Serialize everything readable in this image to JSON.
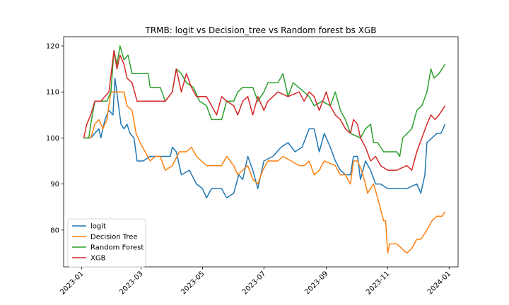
{
  "chart_data": {
    "type": "line",
    "title": "TRMB: logit vs Decision_tree vs Random forest bs XGB",
    "xlabel": "",
    "ylabel": "",
    "ylim": [
      72,
      122
    ],
    "xlim": [
      "2022-12-14",
      "2024-01-10"
    ],
    "yticks": [
      80,
      90,
      100,
      110,
      120
    ],
    "xticks": [
      "2023-01",
      "2023-03",
      "2023-05",
      "2023-07",
      "2023-09",
      "2023-11",
      "2024-01"
    ],
    "xtick_dates": [
      "2023-01-01",
      "2023-03-01",
      "2023-05-01",
      "2023-07-01",
      "2023-09-01",
      "2023-11-01",
      "2024-01-01"
    ],
    "grid": false,
    "legend_position": "lower-left",
    "series": [
      {
        "name": "logit",
        "color": "#1f77b4",
        "points": [
          [
            "2023-01-03",
            100
          ],
          [
            "2023-01-10",
            100
          ],
          [
            "2023-01-14",
            101
          ],
          [
            "2023-01-18",
            102
          ],
          [
            "2023-01-20",
            100
          ],
          [
            "2023-01-24",
            104
          ],
          [
            "2023-01-28",
            106
          ],
          [
            "2023-02-01",
            105
          ],
          [
            "2023-02-03",
            113
          ],
          [
            "2023-02-06",
            108
          ],
          [
            "2023-02-09",
            103
          ],
          [
            "2023-02-12",
            102
          ],
          [
            "2023-02-15",
            103
          ],
          [
            "2023-02-18",
            101
          ],
          [
            "2023-02-22",
            100
          ],
          [
            "2023-02-25",
            95
          ],
          [
            "2023-03-03",
            95
          ],
          [
            "2023-03-10",
            96
          ],
          [
            "2023-03-20",
            96
          ],
          [
            "2023-03-30",
            96
          ],
          [
            "2023-04-01",
            98
          ],
          [
            "2023-04-05",
            97
          ],
          [
            "2023-04-10",
            92
          ],
          [
            "2023-04-18",
            93
          ],
          [
            "2023-04-25",
            90
          ],
          [
            "2023-05-01",
            89
          ],
          [
            "2023-05-05",
            87
          ],
          [
            "2023-05-10",
            89
          ],
          [
            "2023-05-20",
            89
          ],
          [
            "2023-05-25",
            87
          ],
          [
            "2023-06-01",
            88
          ],
          [
            "2023-06-06",
            92
          ],
          [
            "2023-06-10",
            91
          ],
          [
            "2023-06-15",
            96
          ],
          [
            "2023-06-20",
            93
          ],
          [
            "2023-06-25",
            89
          ],
          [
            "2023-07-01",
            95
          ],
          [
            "2023-07-10",
            96
          ],
          [
            "2023-07-18",
            98
          ],
          [
            "2023-07-25",
            99
          ],
          [
            "2023-08-01",
            97
          ],
          [
            "2023-08-08",
            98
          ],
          [
            "2023-08-15",
            102
          ],
          [
            "2023-08-20",
            102
          ],
          [
            "2023-08-25",
            97
          ],
          [
            "2023-08-30",
            101
          ],
          [
            "2023-09-05",
            98
          ],
          [
            "2023-09-10",
            95
          ],
          [
            "2023-09-15",
            93
          ],
          [
            "2023-09-20",
            92
          ],
          [
            "2023-09-25",
            92
          ],
          [
            "2023-09-28",
            96
          ],
          [
            "2023-10-02",
            96
          ],
          [
            "2023-10-05",
            91
          ],
          [
            "2023-10-10",
            95
          ],
          [
            "2023-10-15",
            93
          ],
          [
            "2023-10-20",
            90
          ],
          [
            "2023-10-25",
            90
          ],
          [
            "2023-11-01",
            89
          ],
          [
            "2023-11-10",
            89
          ],
          [
            "2023-11-20",
            89
          ],
          [
            "2023-11-30",
            90
          ],
          [
            "2023-12-04",
            88
          ],
          [
            "2023-12-08",
            92
          ],
          [
            "2023-12-10",
            99
          ],
          [
            "2023-12-15",
            100
          ],
          [
            "2023-12-20",
            101
          ],
          [
            "2023-12-24",
            101
          ],
          [
            "2023-12-28",
            103
          ]
        ]
      },
      {
        "name": "Decision Tree",
        "color": "#ff7f0e",
        "points": [
          [
            "2023-01-03",
            100
          ],
          [
            "2023-01-10",
            100
          ],
          [
            "2023-01-14",
            103
          ],
          [
            "2023-01-18",
            104
          ],
          [
            "2023-01-22",
            102
          ],
          [
            "2023-01-26",
            104
          ],
          [
            "2023-01-30",
            110
          ],
          [
            "2023-02-05",
            110
          ],
          [
            "2023-02-12",
            110
          ],
          [
            "2023-02-15",
            107
          ],
          [
            "2023-02-20",
            106
          ],
          [
            "2023-02-24",
            101
          ],
          [
            "2023-02-28",
            99
          ],
          [
            "2023-03-05",
            97
          ],
          [
            "2023-03-10",
            95
          ],
          [
            "2023-03-15",
            96
          ],
          [
            "2023-03-20",
            96
          ],
          [
            "2023-03-25",
            93
          ],
          [
            "2023-04-01",
            94
          ],
          [
            "2023-04-08",
            97
          ],
          [
            "2023-04-15",
            97
          ],
          [
            "2023-04-20",
            98
          ],
          [
            "2023-04-25",
            96
          ],
          [
            "2023-05-05",
            94
          ],
          [
            "2023-05-20",
            94
          ],
          [
            "2023-05-25",
            96
          ],
          [
            "2023-06-01",
            94
          ],
          [
            "2023-06-05",
            92
          ],
          [
            "2023-06-10",
            93
          ],
          [
            "2023-06-15",
            94
          ],
          [
            "2023-06-20",
            91
          ],
          [
            "2023-06-25",
            90
          ],
          [
            "2023-06-30",
            93
          ],
          [
            "2023-07-05",
            95
          ],
          [
            "2023-07-15",
            95
          ],
          [
            "2023-07-20",
            96
          ],
          [
            "2023-07-28",
            95
          ],
          [
            "2023-08-05",
            94
          ],
          [
            "2023-08-10",
            94
          ],
          [
            "2023-08-15",
            95
          ],
          [
            "2023-08-20",
            92
          ],
          [
            "2023-08-25",
            93
          ],
          [
            "2023-08-30",
            95
          ],
          [
            "2023-09-10",
            94
          ],
          [
            "2023-09-15",
            92
          ],
          [
            "2023-09-20",
            92
          ],
          [
            "2023-09-25",
            90
          ],
          [
            "2023-09-28",
            95
          ],
          [
            "2023-10-02",
            95
          ],
          [
            "2023-10-06",
            93
          ],
          [
            "2023-10-10",
            90
          ],
          [
            "2023-10-12",
            88
          ],
          [
            "2023-10-18",
            90
          ],
          [
            "2023-10-22",
            87
          ],
          [
            "2023-10-28",
            82
          ],
          [
            "2023-10-30",
            82
          ],
          [
            "2023-11-01",
            75
          ],
          [
            "2023-11-03",
            77
          ],
          [
            "2023-11-10",
            77
          ],
          [
            "2023-11-15",
            76
          ],
          [
            "2023-11-20",
            75
          ],
          [
            "2023-11-25",
            76
          ],
          [
            "2023-11-30",
            78
          ],
          [
            "2023-12-04",
            78
          ],
          [
            "2023-12-10",
            80
          ],
          [
            "2023-12-15",
            82
          ],
          [
            "2023-12-20",
            83
          ],
          [
            "2023-12-25",
            83
          ],
          [
            "2023-12-28",
            84
          ]
        ]
      },
      {
        "name": "Random Forest",
        "color": "#2ca02c",
        "points": [
          [
            "2023-01-03",
            100
          ],
          [
            "2023-01-08",
            100
          ],
          [
            "2023-01-10",
            103
          ],
          [
            "2023-01-14",
            108
          ],
          [
            "2023-01-20",
            108
          ],
          [
            "2023-01-26",
            108
          ],
          [
            "2023-01-30",
            110
          ],
          [
            "2023-02-02",
            119
          ],
          [
            "2023-02-05",
            116
          ],
          [
            "2023-02-08",
            120
          ],
          [
            "2023-02-12",
            117
          ],
          [
            "2023-02-16",
            118
          ],
          [
            "2023-02-20",
            114
          ],
          [
            "2023-03-01",
            114
          ],
          [
            "2023-03-08",
            114
          ],
          [
            "2023-03-10",
            111
          ],
          [
            "2023-03-20",
            111
          ],
          [
            "2023-03-25",
            108
          ],
          [
            "2023-04-01",
            110
          ],
          [
            "2023-04-05",
            115
          ],
          [
            "2023-04-10",
            114
          ],
          [
            "2023-04-15",
            112
          ],
          [
            "2023-04-22",
            111
          ],
          [
            "2023-04-28",
            108
          ],
          [
            "2023-05-05",
            107
          ],
          [
            "2023-05-10",
            104
          ],
          [
            "2023-05-20",
            104
          ],
          [
            "2023-05-25",
            108
          ],
          [
            "2023-06-01",
            108
          ],
          [
            "2023-06-05",
            110
          ],
          [
            "2023-06-10",
            111
          ],
          [
            "2023-06-20",
            111
          ],
          [
            "2023-06-25",
            108
          ],
          [
            "2023-07-01",
            110
          ],
          [
            "2023-07-05",
            112
          ],
          [
            "2023-07-15",
            112
          ],
          [
            "2023-07-20",
            114
          ],
          [
            "2023-07-25",
            109
          ],
          [
            "2023-07-30",
            112
          ],
          [
            "2023-08-10",
            110
          ],
          [
            "2023-08-15",
            109
          ],
          [
            "2023-08-20",
            107
          ],
          [
            "2023-08-28",
            108
          ],
          [
            "2023-09-05",
            107
          ],
          [
            "2023-09-10",
            110
          ],
          [
            "2023-09-15",
            106
          ],
          [
            "2023-09-20",
            104
          ],
          [
            "2023-09-25",
            101
          ],
          [
            "2023-10-05",
            100
          ],
          [
            "2023-10-10",
            102
          ],
          [
            "2023-10-15",
            103
          ],
          [
            "2023-10-18",
            99
          ],
          [
            "2023-10-22",
            99
          ],
          [
            "2023-10-28",
            97
          ],
          [
            "2023-11-10",
            97
          ],
          [
            "2023-11-13",
            96
          ],
          [
            "2023-11-16",
            100
          ],
          [
            "2023-11-25",
            102
          ],
          [
            "2023-11-30",
            106
          ],
          [
            "2023-12-05",
            107
          ],
          [
            "2023-12-10",
            110
          ],
          [
            "2023-12-14",
            115
          ],
          [
            "2023-12-17",
            113
          ],
          [
            "2023-12-22",
            114
          ],
          [
            "2023-12-28",
            116
          ]
        ]
      },
      {
        "name": "XGB",
        "color": "#d62728",
        "points": [
          [
            "2023-01-03",
            100
          ],
          [
            "2023-01-06",
            103
          ],
          [
            "2023-01-10",
            105
          ],
          [
            "2023-01-14",
            108
          ],
          [
            "2023-01-20",
            108
          ],
          [
            "2023-01-28",
            110
          ],
          [
            "2023-02-02",
            119
          ],
          [
            "2023-02-05",
            115
          ],
          [
            "2023-02-08",
            118
          ],
          [
            "2023-02-12",
            116
          ],
          [
            "2023-02-15",
            113
          ],
          [
            "2023-02-20",
            112
          ],
          [
            "2023-02-25",
            108
          ],
          [
            "2023-03-05",
            108
          ],
          [
            "2023-03-12",
            108
          ],
          [
            "2023-03-18",
            108
          ],
          [
            "2023-03-25",
            108
          ],
          [
            "2023-04-01",
            110
          ],
          [
            "2023-04-05",
            115
          ],
          [
            "2023-04-10",
            110
          ],
          [
            "2023-04-15",
            114
          ],
          [
            "2023-04-20",
            111
          ],
          [
            "2023-04-25",
            109
          ],
          [
            "2023-05-05",
            109
          ],
          [
            "2023-05-10",
            107
          ],
          [
            "2023-05-15",
            105
          ],
          [
            "2023-05-20",
            109
          ],
          [
            "2023-05-25",
            108
          ],
          [
            "2023-06-01",
            107
          ],
          [
            "2023-06-05",
            105
          ],
          [
            "2023-06-10",
            108
          ],
          [
            "2023-06-15",
            109
          ],
          [
            "2023-06-20",
            105
          ],
          [
            "2023-06-25",
            109
          ],
          [
            "2023-07-01",
            106
          ],
          [
            "2023-07-05",
            108
          ],
          [
            "2023-07-15",
            110
          ],
          [
            "2023-07-25",
            109
          ],
          [
            "2023-08-05",
            110
          ],
          [
            "2023-08-10",
            108
          ],
          [
            "2023-08-15",
            110
          ],
          [
            "2023-08-20",
            109
          ],
          [
            "2023-08-25",
            106
          ],
          [
            "2023-09-01",
            110
          ],
          [
            "2023-09-05",
            107
          ],
          [
            "2023-09-10",
            105
          ],
          [
            "2023-09-15",
            104
          ],
          [
            "2023-09-20",
            102
          ],
          [
            "2023-09-25",
            101
          ],
          [
            "2023-09-28",
            104
          ],
          [
            "2023-10-02",
            103
          ],
          [
            "2023-10-05",
            100
          ],
          [
            "2023-10-10",
            98
          ],
          [
            "2023-10-15",
            95
          ],
          [
            "2023-10-20",
            96
          ],
          [
            "2023-10-25",
            94
          ],
          [
            "2023-11-01",
            93
          ],
          [
            "2023-11-10",
            93
          ],
          [
            "2023-11-20",
            94
          ],
          [
            "2023-11-25",
            93
          ],
          [
            "2023-11-30",
            97
          ],
          [
            "2023-12-05",
            100
          ],
          [
            "2023-12-10",
            103
          ],
          [
            "2023-12-14",
            105
          ],
          [
            "2023-12-18",
            104
          ],
          [
            "2023-12-22",
            105
          ],
          [
            "2023-12-28",
            107
          ]
        ]
      }
    ]
  }
}
